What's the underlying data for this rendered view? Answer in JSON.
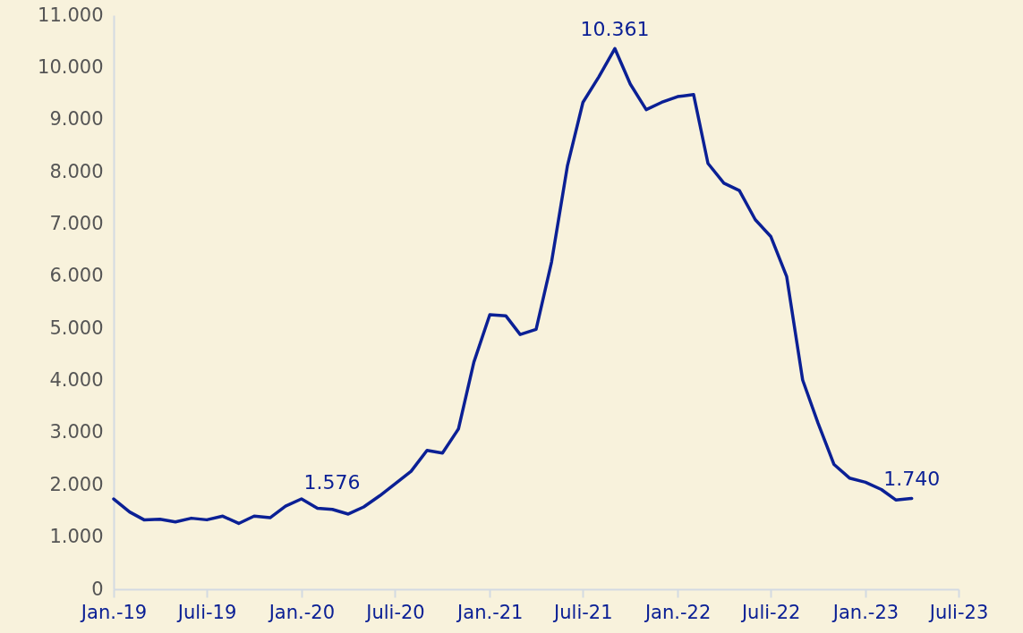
{
  "chart_data": {
    "type": "line",
    "x": [
      "2019-01",
      "2019-02",
      "2019-03",
      "2019-04",
      "2019-05",
      "2019-06",
      "2019-07",
      "2019-08",
      "2019-09",
      "2019-10",
      "2019-11",
      "2019-12",
      "2020-01",
      "2020-02",
      "2020-03",
      "2020-04",
      "2020-05",
      "2020-06",
      "2020-07",
      "2020-08",
      "2020-09",
      "2020-10",
      "2020-11",
      "2020-12",
      "2021-01",
      "2021-02",
      "2021-03",
      "2021-04",
      "2021-05",
      "2021-06",
      "2021-07",
      "2021-08",
      "2021-09",
      "2021-10",
      "2021-11",
      "2021-12",
      "2022-01",
      "2022-02",
      "2022-03",
      "2022-04",
      "2022-05",
      "2022-06",
      "2022-07",
      "2022-08",
      "2022-09",
      "2022-10",
      "2022-11",
      "2022-12",
      "2023-01",
      "2023-02",
      "2023-03",
      "2023-04"
    ],
    "series": [
      {
        "color": "#0b2095",
        "values": [
          1730,
          1480,
          1330,
          1340,
          1290,
          1360,
          1330,
          1400,
          1260,
          1400,
          1370,
          1590,
          1730,
          1550,
          1530,
          1440,
          1576,
          1790,
          2020,
          2260,
          2660,
          2610,
          3070,
          4350,
          5260,
          5240,
          4880,
          4980,
          6270,
          8120,
          9330,
          9820,
          10361,
          9680,
          9190,
          9330,
          9440,
          9480,
          8160,
          7780,
          7640,
          7080,
          6760,
          5990,
          4010,
          3180,
          2390,
          2130,
          2050,
          1910,
          1710,
          1740
        ],
        "value_labels": [
          null,
          null,
          null,
          null,
          null,
          null,
          null,
          null,
          null,
          null,
          null,
          null,
          null,
          null,
          null,
          null,
          "1.576",
          null,
          null,
          null,
          null,
          null,
          null,
          null,
          null,
          null,
          null,
          null,
          null,
          null,
          null,
          null,
          "10.361",
          null,
          null,
          null,
          null,
          null,
          null,
          null,
          null,
          null,
          null,
          null,
          null,
          null,
          null,
          null,
          null,
          null,
          null,
          "1.740"
        ]
      }
    ],
    "xlim": [
      "2019-01",
      "2023-07"
    ],
    "xticks": [
      {
        "value": "2019-01",
        "label": "Jan.-19"
      },
      {
        "value": "2019-07",
        "label": "Juli-19"
      },
      {
        "value": "2020-01",
        "label": "Jan.-20"
      },
      {
        "value": "2020-07",
        "label": "Juli-20"
      },
      {
        "value": "2021-01",
        "label": "Jan.-21"
      },
      {
        "value": "2021-07",
        "label": "Juli-21"
      },
      {
        "value": "2022-01",
        "label": "Jan.-22"
      },
      {
        "value": "2022-07",
        "label": "Juli-22"
      },
      {
        "value": "2023-01",
        "label": "Jan.-23"
      },
      {
        "value": "2023-07",
        "label": "Juli-23"
      }
    ],
    "ylim": [
      0,
      11000
    ],
    "yticks": [
      0,
      {
        "value": 1000,
        "label": "1.000"
      },
      {
        "value": 2000,
        "label": "2.000"
      },
      {
        "value": 3000,
        "label": "3.000"
      },
      {
        "value": 4000,
        "label": "4.000"
      },
      {
        "value": 5000,
        "label": "5.000"
      },
      {
        "value": 6000,
        "label": "6.000"
      },
      {
        "value": 7000,
        "label": "7.000"
      },
      {
        "value": 8000,
        "label": "8.000"
      },
      {
        "value": 9000,
        "label": "9.000"
      },
      {
        "value": 10000,
        "label": "10.000"
      },
      {
        "value": 11000,
        "label": "11.000"
      }
    ]
  }
}
